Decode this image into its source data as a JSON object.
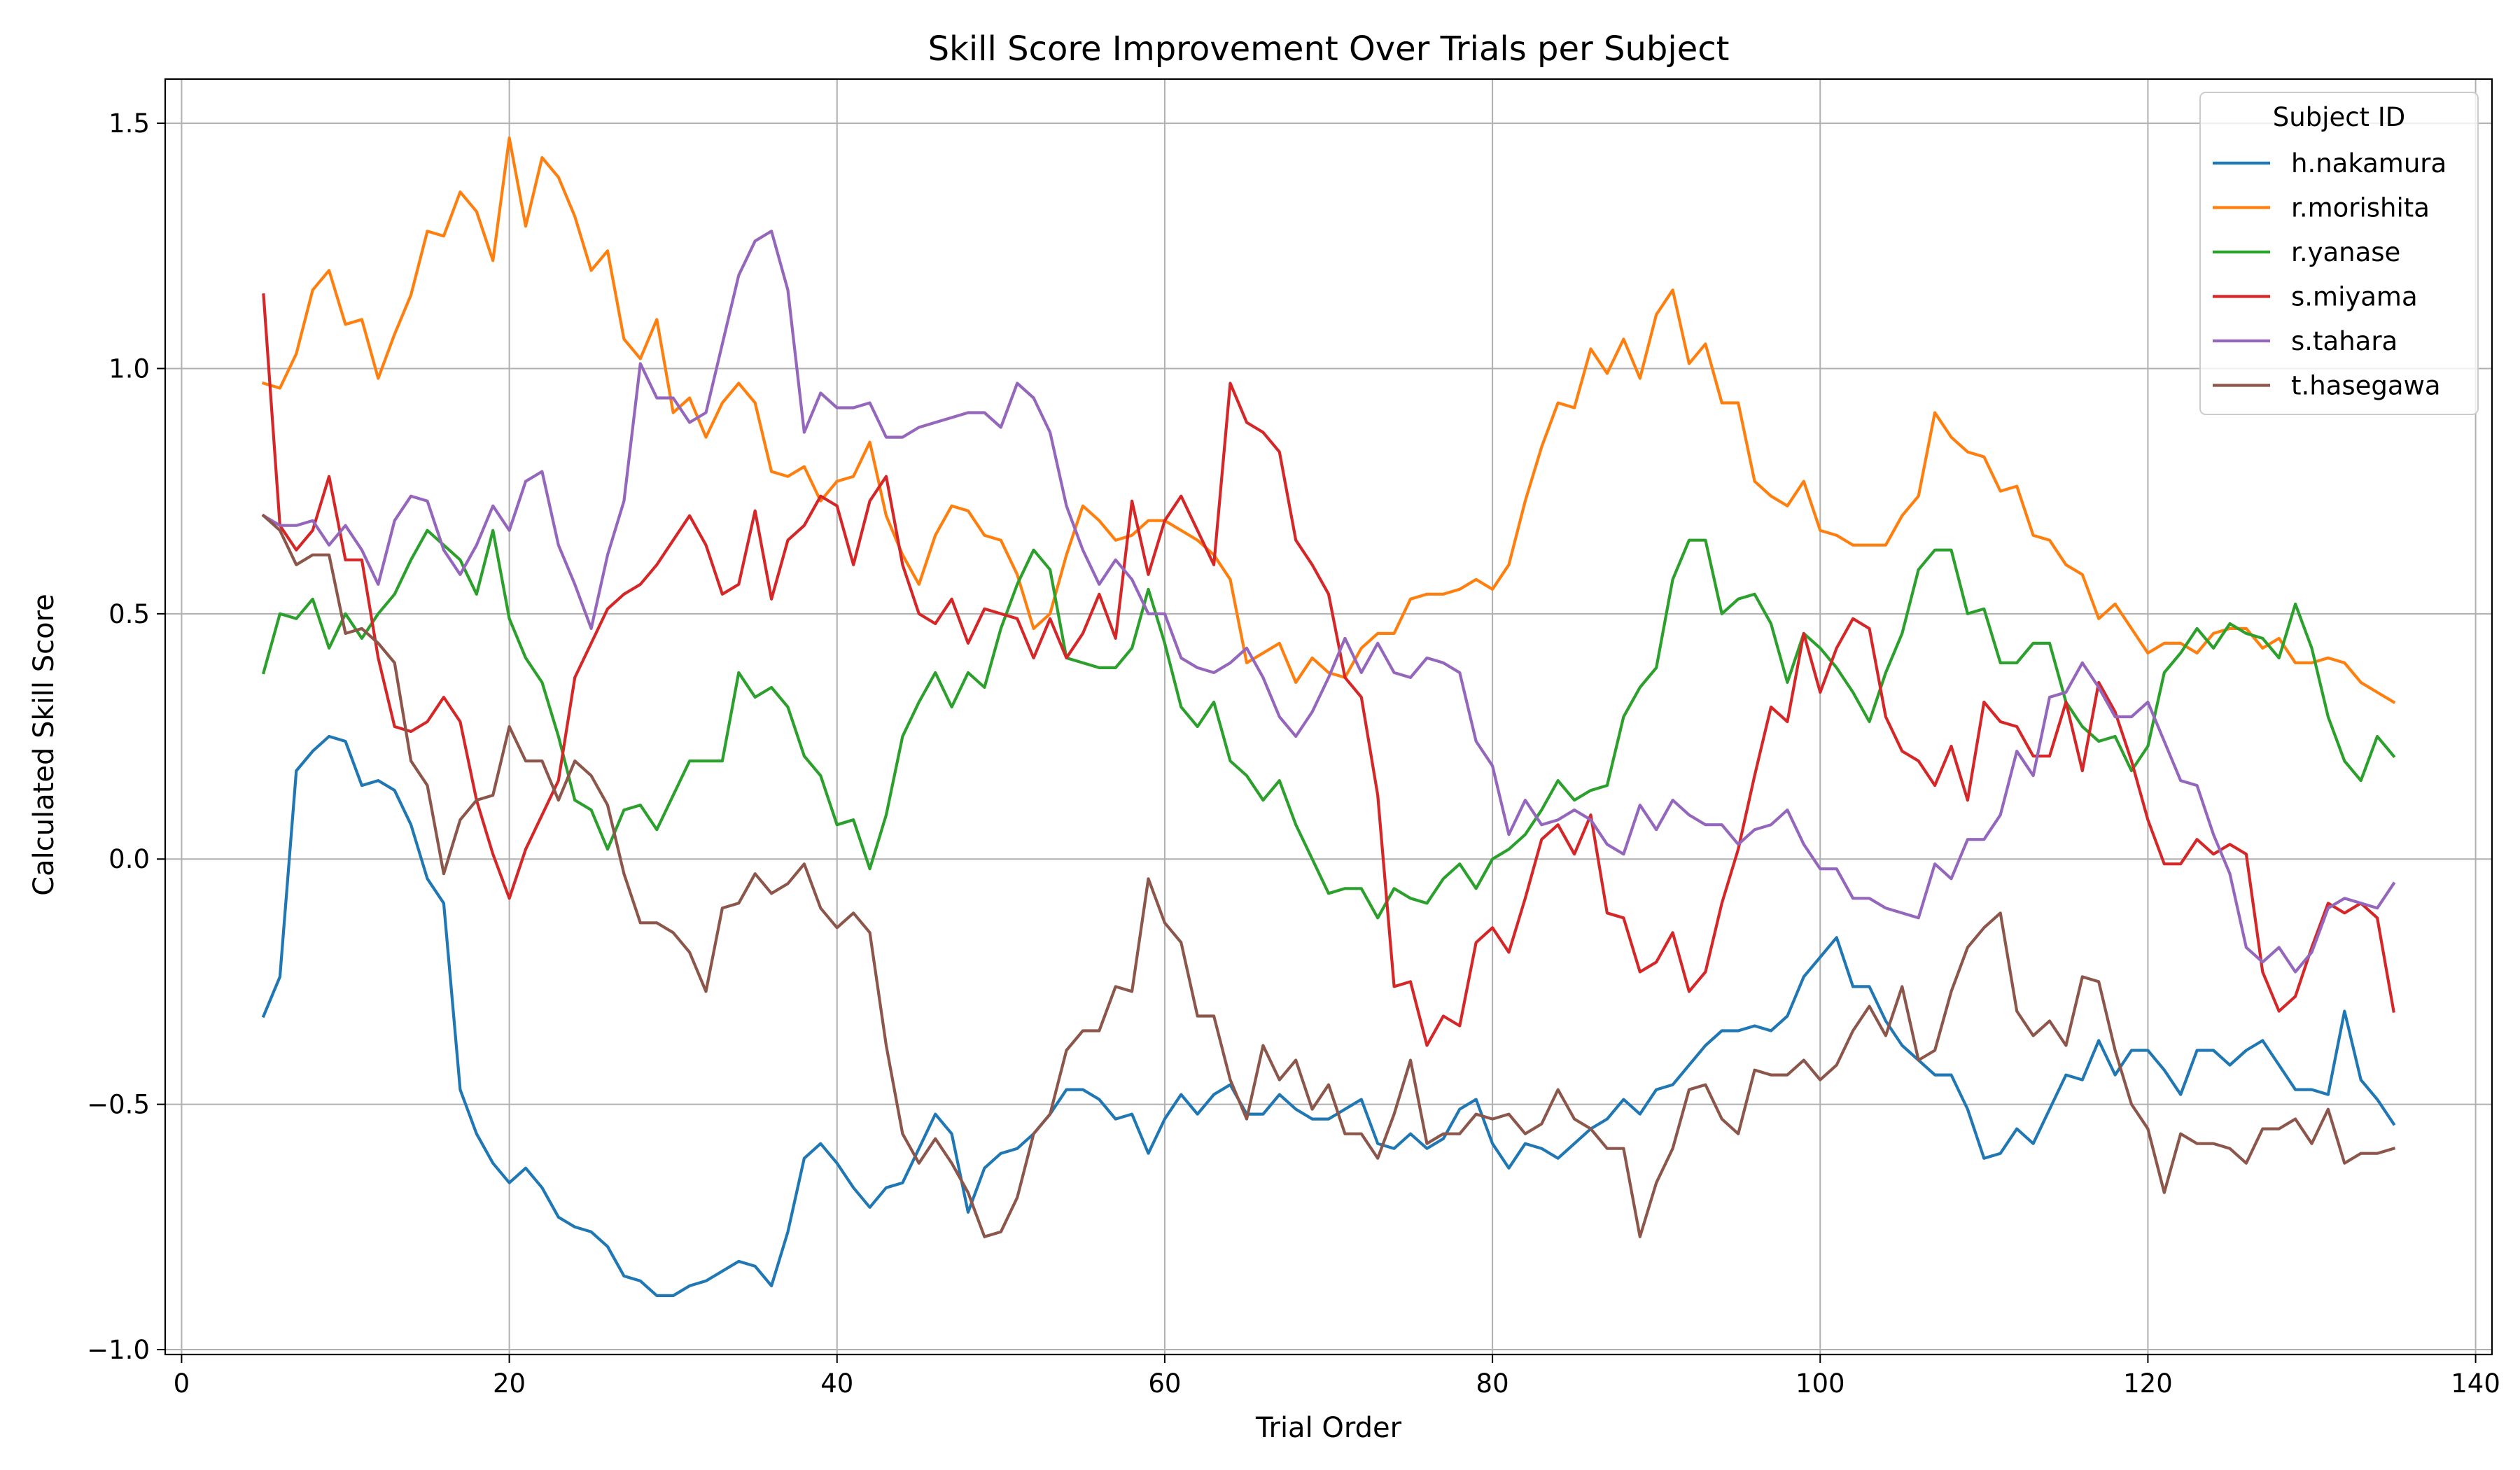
{
  "chart_data": {
    "type": "line",
    "title": "Skill Score Improvement Over Trials per Subject",
    "xlabel": "Trial Order",
    "ylabel": "Calculated Skill Score",
    "xlim": [
      -1,
      141
    ],
    "ylim": [
      -1.01,
      1.59
    ],
    "xticks": [
      0,
      20,
      40,
      60,
      80,
      100,
      120,
      140
    ],
    "yticks": [
      -1.0,
      -0.5,
      0.0,
      0.5,
      1.0,
      1.5
    ],
    "ytick_labels": [
      "−1.0",
      "−0.5",
      "0.0",
      "0.5",
      "1.0",
      "1.5"
    ],
    "grid": true,
    "legend": {
      "title": "Subject ID",
      "position": "top-right"
    },
    "x": [
      5,
      6,
      7,
      8,
      9,
      10,
      11,
      12,
      13,
      14,
      15,
      16,
      17,
      18,
      19,
      20,
      21,
      22,
      23,
      24,
      25,
      26,
      27,
      28,
      29,
      30,
      31,
      32,
      33,
      34,
      35,
      36,
      37,
      38,
      39,
      40,
      41,
      42,
      43,
      44,
      45,
      46,
      47,
      48,
      49,
      50,
      51,
      52,
      53,
      54,
      55,
      56,
      57,
      58,
      59,
      60,
      61,
      62,
      63,
      64,
      65,
      66,
      67,
      68,
      69,
      70,
      71,
      72,
      73,
      74,
      75,
      76,
      77,
      78,
      79,
      80,
      81,
      82,
      83,
      84,
      85,
      86,
      87,
      88,
      89,
      90,
      91,
      92,
      93,
      94,
      95,
      96,
      97,
      98,
      99,
      100,
      101,
      102,
      103,
      104,
      105,
      106,
      107,
      108,
      109,
      110,
      111,
      112,
      113,
      114,
      115,
      116,
      117,
      118,
      119,
      120,
      121,
      122,
      123,
      124,
      125,
      126,
      127,
      128,
      129,
      130,
      131,
      132,
      133,
      134,
      135
    ],
    "series": [
      {
        "name": "h.nakamura",
        "color": "#1f77b4",
        "values": [
          -0.32,
          -0.24,
          0.18,
          0.22,
          0.25,
          0.24,
          0.15,
          0.16,
          0.14,
          0.07,
          -0.04,
          -0.09,
          -0.47,
          -0.56,
          -0.62,
          -0.66,
          -0.63,
          -0.67,
          -0.73,
          -0.75,
          -0.76,
          -0.79,
          -0.85,
          -0.86,
          -0.89,
          -0.89,
          -0.87,
          -0.86,
          -0.84,
          -0.82,
          -0.83,
          -0.87,
          -0.76,
          -0.61,
          -0.58,
          -0.62,
          -0.67,
          -0.71,
          -0.67,
          -0.66,
          -0.59,
          -0.52,
          -0.56,
          -0.72,
          -0.63,
          -0.6,
          -0.59,
          -0.56,
          -0.52,
          -0.47,
          -0.47,
          -0.49,
          -0.53,
          -0.52,
          -0.6,
          -0.53,
          -0.48,
          -0.52,
          -0.48,
          -0.46,
          -0.52,
          -0.52,
          -0.48,
          -0.51,
          -0.53,
          -0.53,
          -0.51,
          -0.49,
          -0.58,
          -0.59,
          -0.56,
          -0.59,
          -0.57,
          -0.51,
          -0.49,
          -0.58,
          -0.63,
          -0.58,
          -0.59,
          -0.61,
          -0.58,
          -0.55,
          -0.53,
          -0.49,
          -0.52,
          -0.47,
          -0.46,
          -0.42,
          -0.38,
          -0.35,
          -0.35,
          -0.34,
          -0.35,
          -0.32,
          -0.24,
          -0.2,
          -0.16,
          -0.26,
          -0.26,
          -0.33,
          -0.38,
          -0.41,
          -0.44,
          -0.44,
          -0.51,
          -0.61,
          -0.6,
          -0.55,
          -0.58,
          -0.51,
          -0.44,
          -0.45,
          -0.37,
          -0.44,
          -0.39,
          -0.39,
          -0.43,
          -0.48,
          -0.39,
          -0.39,
          -0.42,
          -0.39,
          -0.37,
          -0.42,
          -0.47,
          -0.47,
          -0.48,
          -0.31,
          -0.45,
          -0.49,
          -0.54
        ]
      },
      {
        "name": "r.morishita",
        "color": "#ff7f0e",
        "values": [
          0.97,
          0.96,
          1.03,
          1.16,
          1.2,
          1.09,
          1.1,
          0.98,
          1.07,
          1.15,
          1.28,
          1.27,
          1.36,
          1.32,
          1.22,
          1.47,
          1.29,
          1.43,
          1.39,
          1.31,
          1.2,
          1.24,
          1.06,
          1.02,
          1.1,
          0.91,
          0.94,
          0.86,
          0.93,
          0.97,
          0.93,
          0.79,
          0.78,
          0.8,
          0.73,
          0.77,
          0.78,
          0.85,
          0.7,
          0.62,
          0.56,
          0.66,
          0.72,
          0.71,
          0.66,
          0.65,
          0.58,
          0.47,
          0.5,
          0.62,
          0.72,
          0.69,
          0.65,
          0.66,
          0.69,
          0.69,
          0.67,
          0.65,
          0.62,
          0.57,
          0.4,
          0.42,
          0.44,
          0.36,
          0.41,
          0.38,
          0.37,
          0.43,
          0.46,
          0.46,
          0.53,
          0.54,
          0.54,
          0.55,
          0.57,
          0.55,
          0.6,
          0.73,
          0.84,
          0.93,
          0.92,
          1.04,
          0.99,
          1.06,
          0.98,
          1.11,
          1.16,
          1.01,
          1.05,
          0.93,
          0.93,
          0.77,
          0.74,
          0.72,
          0.77,
          0.67,
          0.66,
          0.64,
          0.64,
          0.64,
          0.7,
          0.74,
          0.91,
          0.86,
          0.83,
          0.82,
          0.75,
          0.76,
          0.66,
          0.65,
          0.6,
          0.58,
          0.49,
          0.52,
          0.47,
          0.42,
          0.44,
          0.44,
          0.42,
          0.46,
          0.47,
          0.47,
          0.43,
          0.45,
          0.4,
          0.4,
          0.41,
          0.4,
          0.36,
          0.34,
          0.32
        ]
      },
      {
        "name": "r.yanase",
        "color": "#2ca02c",
        "values": [
          0.38,
          0.5,
          0.49,
          0.53,
          0.43,
          0.5,
          0.45,
          0.5,
          0.54,
          0.61,
          0.67,
          0.64,
          0.61,
          0.54,
          0.67,
          0.49,
          0.41,
          0.36,
          0.25,
          0.12,
          0.1,
          0.02,
          0.1,
          0.11,
          0.06,
          0.13,
          0.2,
          0.2,
          0.2,
          0.38,
          0.33,
          0.35,
          0.31,
          0.21,
          0.17,
          0.07,
          0.08,
          -0.02,
          0.09,
          0.25,
          0.32,
          0.38,
          0.31,
          0.38,
          0.35,
          0.47,
          0.56,
          0.63,
          0.59,
          0.41,
          0.4,
          0.39,
          0.39,
          0.43,
          0.55,
          0.44,
          0.31,
          0.27,
          0.32,
          0.2,
          0.17,
          0.12,
          0.16,
          0.07,
          0.0,
          -0.07,
          -0.06,
          -0.06,
          -0.12,
          -0.06,
          -0.08,
          -0.09,
          -0.04,
          -0.01,
          -0.06,
          0.0,
          0.02,
          0.05,
          0.1,
          0.16,
          0.12,
          0.14,
          0.15,
          0.29,
          0.35,
          0.39,
          0.57,
          0.65,
          0.65,
          0.5,
          0.53,
          0.54,
          0.48,
          0.36,
          0.46,
          0.43,
          0.39,
          0.34,
          0.28,
          0.38,
          0.46,
          0.59,
          0.63,
          0.63,
          0.5,
          0.51,
          0.4,
          0.4,
          0.44,
          0.44,
          0.32,
          0.27,
          0.24,
          0.25,
          0.18,
          0.23,
          0.38,
          0.42,
          0.47,
          0.43,
          0.48,
          0.46,
          0.45,
          0.41,
          0.52,
          0.43,
          0.29,
          0.2,
          0.16,
          0.25,
          0.21
        ]
      },
      {
        "name": "s.miyama",
        "color": "#d62728",
        "values": [
          1.15,
          0.68,
          0.63,
          0.67,
          0.78,
          0.61,
          0.61,
          0.41,
          0.27,
          0.26,
          0.28,
          0.33,
          0.28,
          0.12,
          0.01,
          -0.08,
          0.02,
          0.09,
          0.16,
          0.37,
          0.44,
          0.51,
          0.54,
          0.56,
          0.6,
          0.65,
          0.7,
          0.64,
          0.54,
          0.56,
          0.71,
          0.53,
          0.65,
          0.68,
          0.74,
          0.72,
          0.6,
          0.73,
          0.78,
          0.6,
          0.5,
          0.48,
          0.53,
          0.44,
          0.51,
          0.5,
          0.49,
          0.41,
          0.49,
          0.41,
          0.46,
          0.54,
          0.45,
          0.73,
          0.58,
          0.69,
          0.74,
          0.67,
          0.6,
          0.97,
          0.89,
          0.87,
          0.83,
          0.65,
          0.6,
          0.54,
          0.37,
          0.33,
          0.13,
          -0.26,
          -0.25,
          -0.38,
          -0.32,
          -0.34,
          -0.17,
          -0.14,
          -0.19,
          -0.08,
          0.04,
          0.07,
          0.01,
          0.09,
          -0.11,
          -0.12,
          -0.23,
          -0.21,
          -0.15,
          -0.27,
          -0.23,
          -0.09,
          0.02,
          0.17,
          0.31,
          0.28,
          0.46,
          0.34,
          0.43,
          0.49,
          0.47,
          0.29,
          0.22,
          0.2,
          0.15,
          0.23,
          0.12,
          0.32,
          0.28,
          0.27,
          0.21,
          0.21,
          0.32,
          0.18,
          0.36,
          0.3,
          0.2,
          0.08,
          -0.01,
          -0.01,
          0.04,
          0.01,
          0.03,
          0.01,
          -0.23,
          -0.31,
          -0.28,
          -0.18,
          -0.09,
          -0.11,
          -0.09,
          -0.12,
          -0.31
        ]
      },
      {
        "name": "s.tahara",
        "color": "#9467bd",
        "values": [
          0.7,
          0.68,
          0.68,
          0.69,
          0.64,
          0.68,
          0.63,
          0.56,
          0.69,
          0.74,
          0.73,
          0.63,
          0.58,
          0.64,
          0.72,
          0.67,
          0.77,
          0.79,
          0.64,
          0.56,
          0.47,
          0.62,
          0.73,
          1.01,
          0.94,
          0.94,
          0.89,
          0.91,
          1.05,
          1.19,
          1.26,
          1.28,
          1.16,
          0.87,
          0.95,
          0.92,
          0.92,
          0.93,
          0.86,
          0.86,
          0.88,
          0.89,
          0.9,
          0.91,
          0.91,
          0.88,
          0.97,
          0.94,
          0.87,
          0.72,
          0.63,
          0.56,
          0.61,
          0.57,
          0.5,
          0.5,
          0.41,
          0.39,
          0.38,
          0.4,
          0.43,
          0.37,
          0.29,
          0.25,
          0.3,
          0.37,
          0.45,
          0.38,
          0.44,
          0.38,
          0.37,
          0.41,
          0.4,
          0.38,
          0.24,
          0.19,
          0.05,
          0.12,
          0.07,
          0.08,
          0.1,
          0.08,
          0.03,
          0.01,
          0.11,
          0.06,
          0.12,
          0.09,
          0.07,
          0.07,
          0.03,
          0.06,
          0.07,
          0.1,
          0.03,
          -0.02,
          -0.02,
          -0.08,
          -0.08,
          -0.1,
          -0.11,
          -0.12,
          -0.01,
          -0.04,
          0.04,
          0.04,
          0.09,
          0.22,
          0.17,
          0.33,
          0.34,
          0.4,
          0.35,
          0.29,
          0.29,
          0.32,
          0.24,
          0.16,
          0.15,
          0.05,
          -0.03,
          -0.18,
          -0.21,
          -0.18,
          -0.23,
          -0.19,
          -0.1,
          -0.08,
          -0.09,
          -0.1,
          -0.05
        ]
      },
      {
        "name": "t.hasegawa",
        "color": "#8c564b",
        "values": [
          0.7,
          0.67,
          0.6,
          0.62,
          0.62,
          0.46,
          0.47,
          0.44,
          0.4,
          0.2,
          0.15,
          -0.03,
          0.08,
          0.12,
          0.13,
          0.27,
          0.2,
          0.2,
          0.12,
          0.2,
          0.17,
          0.11,
          -0.03,
          -0.13,
          -0.13,
          -0.15,
          -0.19,
          -0.27,
          -0.1,
          -0.09,
          -0.03,
          -0.07,
          -0.05,
          -0.01,
          -0.1,
          -0.14,
          -0.11,
          -0.15,
          -0.38,
          -0.56,
          -0.62,
          -0.57,
          -0.62,
          -0.68,
          -0.77,
          -0.76,
          -0.69,
          -0.56,
          -0.52,
          -0.39,
          -0.35,
          -0.35,
          -0.26,
          -0.27,
          -0.04,
          -0.13,
          -0.17,
          -0.32,
          -0.32,
          -0.45,
          -0.53,
          -0.38,
          -0.45,
          -0.41,
          -0.51,
          -0.46,
          -0.56,
          -0.56,
          -0.61,
          -0.52,
          -0.41,
          -0.58,
          -0.56,
          -0.56,
          -0.52,
          -0.53,
          -0.52,
          -0.56,
          -0.54,
          -0.47,
          -0.53,
          -0.55,
          -0.59,
          -0.59,
          -0.77,
          -0.66,
          -0.59,
          -0.47,
          -0.46,
          -0.53,
          -0.56,
          -0.43,
          -0.44,
          -0.44,
          -0.41,
          -0.45,
          -0.42,
          -0.35,
          -0.3,
          -0.36,
          -0.26,
          -0.41,
          -0.39,
          -0.27,
          -0.18,
          -0.14,
          -0.11,
          -0.31,
          -0.36,
          -0.33,
          -0.38,
          -0.24,
          -0.25,
          -0.39,
          -0.5,
          -0.55,
          -0.68,
          -0.56,
          -0.58,
          -0.58,
          -0.59,
          -0.62,
          -0.55,
          -0.55,
          -0.53,
          -0.58,
          -0.51,
          -0.62,
          -0.6,
          -0.6,
          -0.59
        ]
      }
    ]
  }
}
